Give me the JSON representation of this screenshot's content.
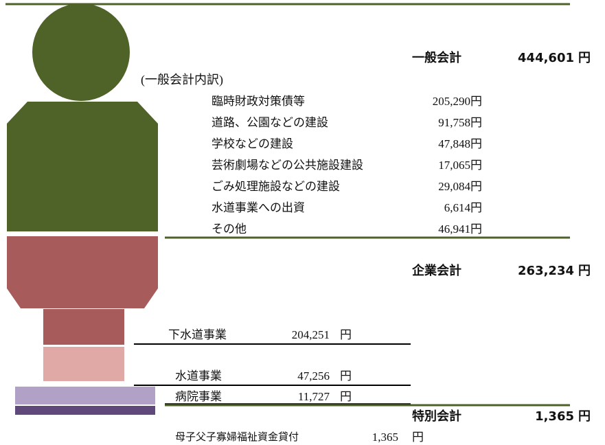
{
  "general": {
    "label": "一般会計",
    "amount": "444,601",
    "unit": "円",
    "breakdown_title": "(一般会計内訳)",
    "items": [
      {
        "label": "臨時財政対策債等",
        "amount": "205,290円"
      },
      {
        "label": "道路、公園などの建設",
        "amount": "91,758円"
      },
      {
        "label": "学校などの建設",
        "amount": "47,848円"
      },
      {
        "label": "芸術劇場などの公共施設建設",
        "amount": "17,065円"
      },
      {
        "label": "ごみ処理施設などの建設",
        "amount": "29,084円"
      },
      {
        "label": "水道事業への出資",
        "amount": "6,614円"
      },
      {
        "label": "その他",
        "amount": "46,941円"
      }
    ]
  },
  "enterprise": {
    "label": "企業会計",
    "amount": "263,234",
    "unit": "円",
    "items": [
      {
        "label": "下水道事業",
        "amount": "204,251",
        "unit": "円"
      },
      {
        "label": "水道事業",
        "amount": "47,256",
        "unit": "円"
      },
      {
        "label": "病院事業",
        "amount": "11,727",
        "unit": "円"
      }
    ]
  },
  "special": {
    "label": "特別会計",
    "amount": "1,365",
    "unit": "円",
    "items": [
      {
        "label": "母子父子寡婦福祉資金貸付",
        "amount": "1,365",
        "unit": "円"
      }
    ]
  }
}
